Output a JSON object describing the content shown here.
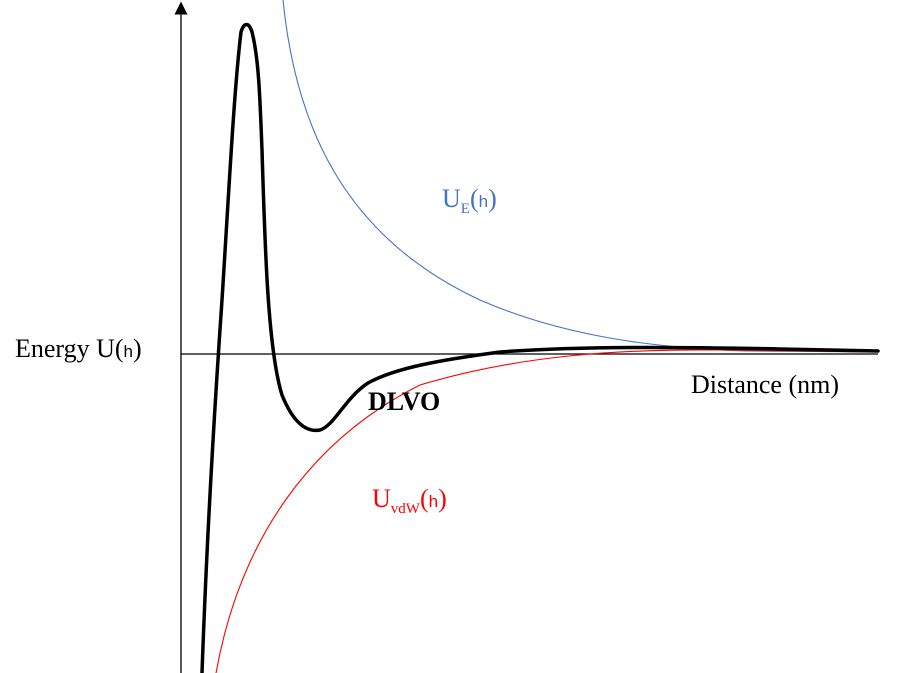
{
  "y_axis_label": {
    "prefix": "Energy U(",
    "arg": "h",
    "suffix": ")"
  },
  "x_axis_label": "Distance (nm)",
  "curves": {
    "electrostatic": {
      "base": "U",
      "subscript": "E",
      "open": "(",
      "arg": "h",
      "close": ")",
      "color": "#4472c4"
    },
    "van_der_waals": {
      "base": "U",
      "subscript": "vdW",
      "open": "(",
      "arg": "h",
      "close": ")",
      "color": "#ff0000"
    },
    "dlvo": {
      "label": "DLVO",
      "color": "#000000"
    }
  }
}
